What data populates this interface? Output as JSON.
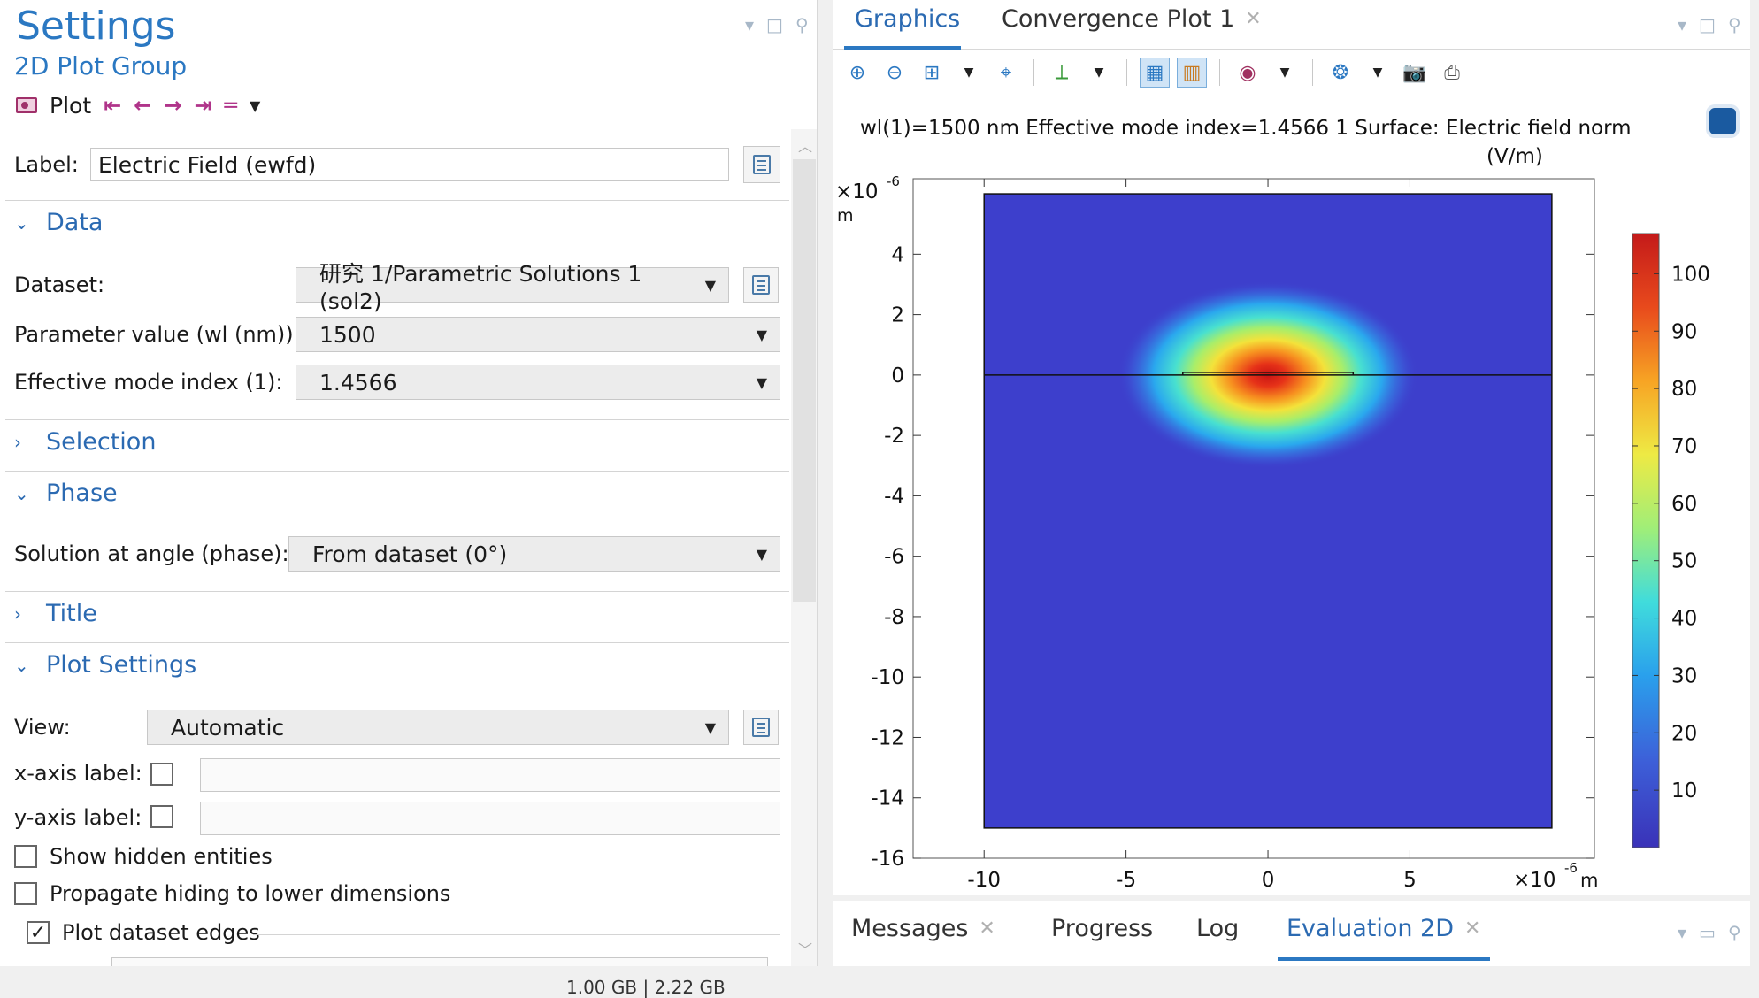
{
  "settings": {
    "title": "Settings",
    "subtitle": "2D Plot Group",
    "plot_label": "Plot",
    "label_field_label": "Label:",
    "label_value": "Electric Field (ewfd)",
    "sections": {
      "data": "Data",
      "selection": "Selection",
      "phase": "Phase",
      "title": "Title",
      "plot_settings": "Plot Settings"
    },
    "dataset_label": "Dataset:",
    "dataset_value": "研究 1/Parametric Solutions 1 (sol2)",
    "param_label": "Parameter value (wl (nm)):",
    "param_value": "1500",
    "mode_label": "Effective mode index (1):",
    "mode_value": "1.4566",
    "phase_label": "Solution at angle (phase):",
    "phase_value": "From dataset (0°)",
    "view_label": "View:",
    "view_value": "Automatic",
    "xaxis_label": "x-axis label:",
    "yaxis_label": "y-axis label:",
    "show_hidden": "Show hidden entities",
    "propagate": "Propagate hiding to lower dimensions",
    "plot_edges": "Plot dataset edges",
    "plot_edges_checked": true
  },
  "graphics": {
    "tabs": [
      "Graphics",
      "Convergence Plot 1"
    ],
    "active_tab": 0
  },
  "chart_data": {
    "type": "heatmap",
    "title": "wl(1)=1500 nm Effective mode index=1.4566 1 Surface: Electric field norm",
    "title_unit": "(V/m)",
    "x_multiplier": "×10",
    "x_exponent": "-6",
    "x_unit": "m",
    "y_multiplier": "×10",
    "y_exponent": "-6",
    "y_unit": "m",
    "xlim": [
      -12.5,
      11.5
    ],
    "ylim": [
      -16,
      6.5
    ],
    "x_ticks": [
      -10,
      -5,
      0,
      5
    ],
    "y_ticks": [
      4,
      2,
      0,
      -2,
      -4,
      -6,
      -8,
      -10,
      -12,
      -14,
      -16
    ],
    "domain": {
      "x": [
        -10,
        10
      ],
      "y": [
        -15,
        6
      ]
    },
    "waveguide": {
      "x": [
        -3,
        3
      ],
      "y": [
        0,
        0.1
      ]
    },
    "field_peak": {
      "x": 0,
      "y": 0
    },
    "colorbar": {
      "min": 0,
      "max": 107,
      "ticks": [
        100,
        90,
        80,
        70,
        60,
        50,
        40,
        30,
        20,
        10
      ],
      "colormap": "rainbow"
    }
  },
  "bottom": {
    "tabs": [
      "Messages",
      "Progress",
      "Log",
      "Evaluation 2D"
    ],
    "active_tab": 3
  },
  "status": {
    "memory": "1.00 GB | 2.22 GB"
  }
}
